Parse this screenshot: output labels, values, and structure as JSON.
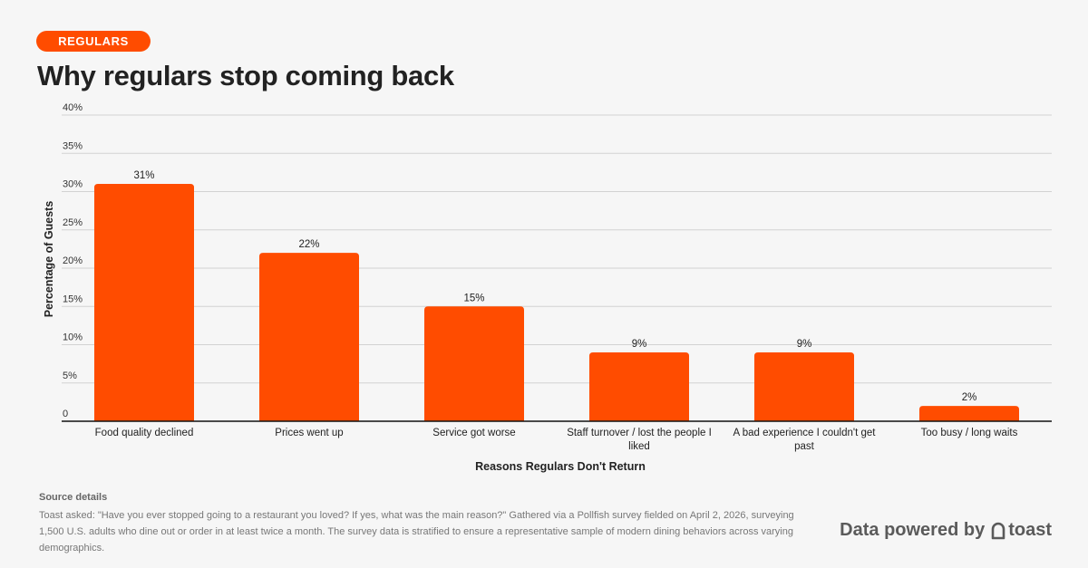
{
  "header": {
    "tag": "REGULARS",
    "title": "Why regulars stop coming back"
  },
  "chart_data": {
    "type": "bar",
    "title": "Why regulars stop coming back",
    "xlabel": "Reasons Regulars Don't Return",
    "ylabel": "Percentage of Guests",
    "ylim": [
      0,
      40
    ],
    "yticks": [
      0,
      5,
      10,
      15,
      20,
      25,
      30,
      35,
      40
    ],
    "ytick_labels": [
      "0",
      "5%",
      "10%",
      "15%",
      "20%",
      "25%",
      "30%",
      "35%",
      "40%"
    ],
    "categories": [
      "Food quality declined",
      "Prices went up",
      "Service got worse",
      "Staff turnover / lost the people I liked",
      "A bad experience I couldn't get past",
      "Too busy / long waits"
    ],
    "values": [
      31,
      22,
      15,
      9,
      9,
      2
    ],
    "data_labels": [
      "31%",
      "22%",
      "15%",
      "9%",
      "9%",
      "2%"
    ],
    "bar_color": "#ff4c00",
    "grid": true
  },
  "source": {
    "title": "Source details",
    "text": "Toast asked: \"Have you ever stopped going to a restaurant you loved? If yes, what was the main reason?\" Gathered via a Pollfish survey fielded on April 2, 2026, surveying 1,500 U.S. adults who dine out or order in at least twice a month. The survey data is stratified to ensure a representative sample of modern dining behaviors across varying demographics."
  },
  "brand": {
    "prefix": "Data powered by",
    "name": "toast",
    "icon": "toast-logo-icon"
  },
  "colors": {
    "accent": "#ff4c00",
    "background": "#f6f6f6"
  }
}
